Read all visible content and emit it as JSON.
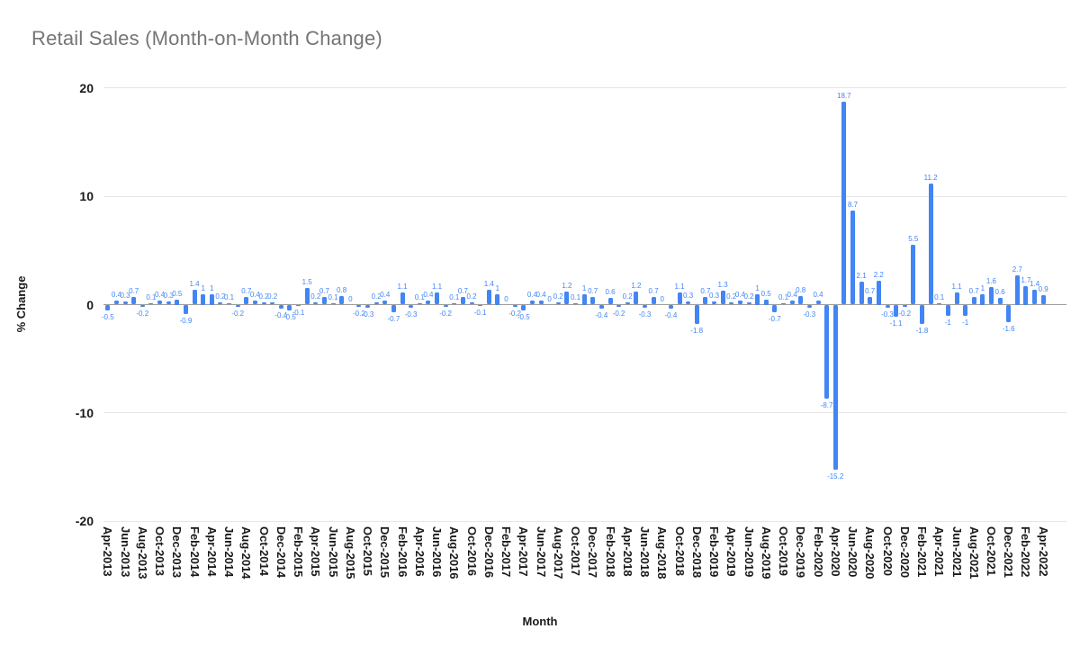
{
  "title": "Retail Sales (Month-on-Month Change)",
  "chart_data": {
    "type": "bar",
    "title": "Retail Sales (Month-on-Month Change)",
    "xlabel": "Month",
    "ylabel": "% Change",
    "ylim": [
      -20,
      20
    ],
    "yticks": [
      20,
      10,
      0,
      -10,
      -20
    ],
    "x_tick_step": 2,
    "grid": "horizontal-only",
    "legend_position": "none",
    "bar_color": "#4285f4",
    "data_label_color": "#4285f4",
    "grid_color": "#e6e6e6",
    "zero_line_color": "#9e9e9e",
    "axis_text_color": "#1a1a1a",
    "title_color": "#757575",
    "x": [
      "Apr-2013",
      "May-2013",
      "Jun-2013",
      "Jul-2013",
      "Aug-2013",
      "Sep-2013",
      "Oct-2013",
      "Nov-2013",
      "Dec-2013",
      "Jan-2014",
      "Feb-2014",
      "Mar-2014",
      "Apr-2014",
      "May-2014",
      "Jun-2014",
      "Jul-2014",
      "Aug-2014",
      "Sep-2014",
      "Oct-2014",
      "Nov-2014",
      "Dec-2014",
      "Jan-2015",
      "Feb-2015",
      "Mar-2015",
      "Apr-2015",
      "May-2015",
      "Jun-2015",
      "Jul-2015",
      "Aug-2015",
      "Sep-2015",
      "Oct-2015",
      "Nov-2015",
      "Dec-2015",
      "Jan-2016",
      "Feb-2016",
      "Mar-2016",
      "Apr-2016",
      "May-2016",
      "Jun-2016",
      "Jul-2016",
      "Aug-2016",
      "Sep-2016",
      "Oct-2016",
      "Nov-2016",
      "Dec-2016",
      "Jan-2017",
      "Feb-2017",
      "Mar-2017",
      "Apr-2017",
      "May-2017",
      "Jun-2017",
      "Jul-2017",
      "Aug-2017",
      "Sep-2017",
      "Oct-2017",
      "Nov-2017",
      "Dec-2017",
      "Jan-2018",
      "Feb-2018",
      "Mar-2018",
      "Apr-2018",
      "May-2018",
      "Jun-2018",
      "Jul-2018",
      "Aug-2018",
      "Sep-2018",
      "Oct-2018",
      "Nov-2018",
      "Dec-2018",
      "Jan-2019",
      "Feb-2019",
      "Mar-2019",
      "Apr-2019",
      "May-2019",
      "Jun-2019",
      "Jul-2019",
      "Aug-2019",
      "Sep-2019",
      "Oct-2019",
      "Nov-2019",
      "Dec-2019",
      "Jan-2020",
      "Feb-2020",
      "Mar-2020",
      "Apr-2020",
      "May-2020",
      "Jun-2020",
      "Jul-2020",
      "Aug-2020",
      "Sep-2020",
      "Oct-2020",
      "Nov-2020",
      "Dec-2020",
      "Jan-2021",
      "Feb-2021",
      "Mar-2021",
      "Apr-2021",
      "May-2021",
      "Jun-2021",
      "Jul-2021",
      "Aug-2021",
      "Sep-2021",
      "Oct-2021",
      "Nov-2021",
      "Dec-2021",
      "Jan-2022",
      "Feb-2022",
      "Mar-2022",
      "Apr-2022"
    ],
    "values": [
      -0.5,
      0.4,
      0.3,
      0.7,
      -0.2,
      0.1,
      0.4,
      0.3,
      0.5,
      -0.9,
      1.4,
      1,
      1,
      0.2,
      0.1,
      -0.2,
      0.7,
      0.4,
      0.2,
      0.2,
      -0.4,
      -0.5,
      -0.1,
      1.5,
      0.2,
      0.7,
      0.1,
      0.8,
      0,
      -0.2,
      -0.3,
      0.2,
      0.4,
      -0.7,
      1.1,
      -0.3,
      0.1,
      0.4,
      1.1,
      -0.2,
      0.1,
      0.7,
      0.2,
      -0.1,
      1.4,
      1,
      0,
      -0.2,
      -0.5,
      0.4,
      0.4,
      0,
      0.2,
      1.2,
      0.1,
      1,
      0.7,
      -0.4,
      0.6,
      -0.2,
      0.2,
      1.2,
      -0.3,
      0.7,
      0,
      -0.4,
      1.1,
      0.3,
      -1.8,
      0.7,
      0.3,
      1.3,
      0.2,
      0.4,
      0.2,
      1,
      0.5,
      -0.7,
      0.1,
      0.4,
      0.8,
      -0.3,
      0.4,
      -8.7,
      -15.2,
      18.7,
      8.7,
      2.1,
      0.7,
      2.2,
      -0.3,
      -1.1,
      -0.2,
      5.5,
      -1.8,
      11.2,
      0.1,
      -1,
      1.1,
      -1,
      0.7,
      1,
      1.6,
      0.6,
      -1.6,
      2.7,
      1.7,
      1.4,
      0.9
    ]
  }
}
